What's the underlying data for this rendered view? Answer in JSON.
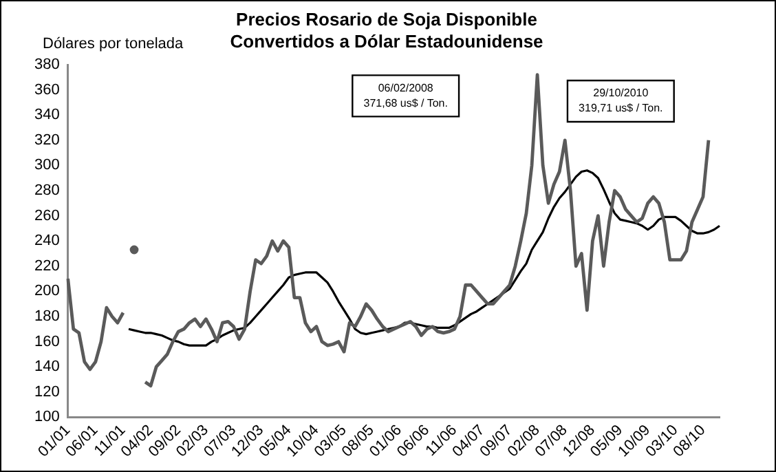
{
  "chart_data": {
    "type": "line",
    "title": "Precios Rosario de Soja Disponible\nConvertidos a Dólar Estadounidense",
    "ylabel": "Dólares por tonelada",
    "categories": [
      "01/01",
      null,
      null,
      null,
      null,
      "06/01",
      null,
      null,
      null,
      null,
      "11/01",
      null,
      null,
      null,
      null,
      "04/02",
      null,
      null,
      null,
      null,
      "09/02",
      null,
      null,
      null,
      null,
      "02/03",
      null,
      null,
      null,
      null,
      "07/03",
      null,
      null,
      null,
      null,
      "12/03",
      null,
      null,
      null,
      null,
      "05/04",
      null,
      null,
      null,
      null,
      "10/04",
      null,
      null,
      null,
      null,
      "03/05",
      null,
      null,
      null,
      null,
      "08/05",
      null,
      null,
      null,
      null,
      "01/06",
      null,
      null,
      null,
      null,
      "06/06",
      null,
      null,
      null,
      null,
      "11/06",
      null,
      null,
      null,
      null,
      "04/07",
      null,
      null,
      null,
      null,
      "09/07",
      null,
      null,
      null,
      null,
      "02/08",
      null,
      null,
      null,
      null,
      "07/08",
      null,
      null,
      null,
      null,
      "12/08",
      null,
      null,
      null,
      null,
      "05/09",
      null,
      null,
      null,
      null,
      "10/09",
      null,
      null,
      null,
      null,
      "03/10",
      null,
      null,
      null,
      null,
      "08/10",
      null,
      null,
      null
    ],
    "series": [
      {
        "color": "#5a5a5a",
        "values": [
          210,
          170,
          167,
          144,
          138,
          144,
          160,
          187,
          180,
          175,
          183,
          null,
          233,
          null,
          128,
          125,
          140,
          145,
          150,
          160,
          168,
          170,
          175,
          178,
          172,
          178,
          170,
          160,
          175,
          176,
          172,
          162,
          170,
          200,
          225,
          222,
          228,
          240,
          232,
          240,
          235,
          195,
          195,
          175,
          168,
          172,
          160,
          157,
          158,
          160,
          152,
          175,
          172,
          180,
          190,
          185,
          178,
          172,
          168,
          170,
          172,
          174,
          176,
          172,
          165,
          170,
          172,
          168,
          167,
          168,
          170,
          180,
          205,
          205,
          200,
          195,
          190,
          190,
          195,
          200,
          205,
          220,
          240,
          262,
          300,
          372,
          300,
          270,
          285,
          295,
          320,
          280,
          220,
          230,
          185,
          240,
          260,
          220,
          255,
          280,
          275,
          265,
          260,
          255,
          258,
          270,
          275,
          270,
          255,
          225,
          225,
          225,
          232,
          255,
          265,
          275,
          320,
          null,
          null
        ]
      },
      {
        "color": "#000000",
        "values": [
          null,
          null,
          null,
          null,
          null,
          null,
          null,
          null,
          null,
          null,
          null,
          170,
          169,
          168,
          167,
          167,
          166,
          165,
          163,
          161,
          160,
          158,
          157,
          157,
          157,
          157,
          160,
          162,
          165,
          167,
          169,
          170,
          171,
          175,
          180,
          185,
          190,
          195,
          200,
          205,
          211,
          213,
          214,
          215,
          215,
          215,
          211,
          207,
          200,
          192,
          185,
          178,
          170,
          167,
          166,
          167,
          168,
          169,
          170,
          171,
          172,
          175,
          175,
          174,
          173,
          172,
          172,
          171,
          171,
          171,
          173,
          176,
          179,
          182,
          184,
          187,
          190,
          193,
          196,
          199,
          202,
          209,
          216,
          222,
          233,
          240,
          247,
          258,
          267,
          274,
          279,
          285,
          291,
          295,
          296,
          294,
          290,
          281,
          271,
          262,
          257,
          256,
          255,
          254,
          252,
          249,
          252,
          257,
          259,
          259,
          259,
          256,
          252,
          248,
          246,
          246,
          247,
          249,
          252
        ]
      }
    ],
    "ylim": [
      100,
      380
    ],
    "yticks": [
      100,
      120,
      140,
      160,
      180,
      200,
      220,
      240,
      260,
      280,
      300,
      320,
      340,
      360,
      380
    ],
    "grid": false,
    "annotations": [
      "06/02/2008\n371,68 us$ / Ton.",
      "29/10/2010\n319,71 us$ / Ton."
    ]
  }
}
